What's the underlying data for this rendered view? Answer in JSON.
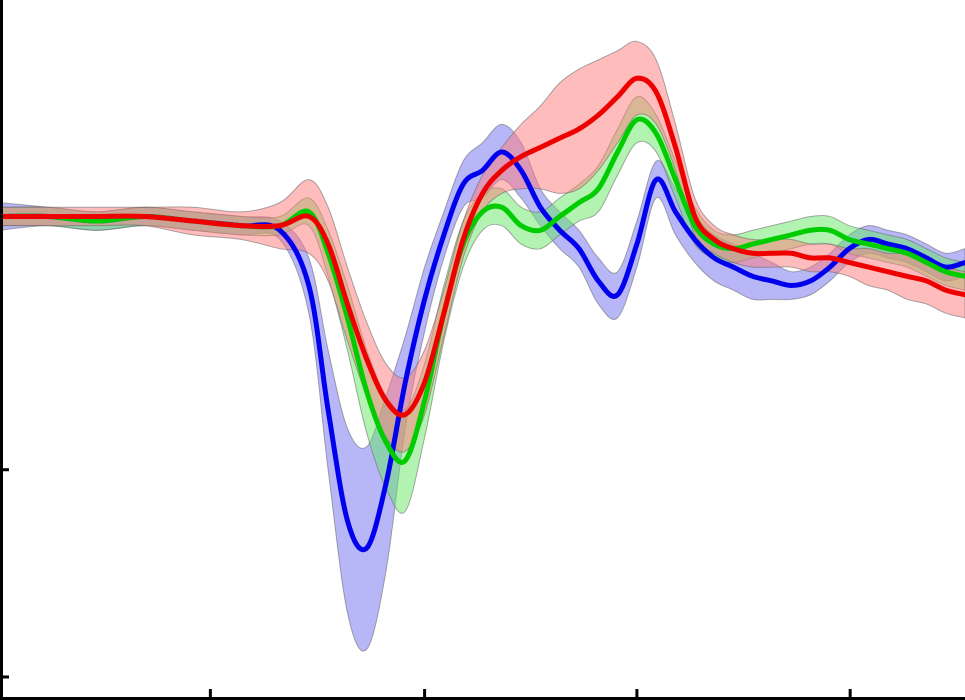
{
  "chart_data": {
    "type": "line",
    "title": "",
    "xlabel": "",
    "ylabel": "",
    "xlim": [
      0,
      100
    ],
    "ylim": [
      -1.05,
      0.47
    ],
    "x_ticks": [
      21.8,
      44.0,
      66.0,
      88.1
    ],
    "y_ticks": [
      -0.55,
      -1.0
    ],
    "grid": false,
    "legend": "none",
    "x": [
      0,
      5,
      10,
      15,
      20,
      25,
      29,
      32,
      34,
      36,
      38,
      40,
      42,
      44,
      46,
      48,
      50,
      52,
      54,
      56,
      58,
      60,
      62,
      64,
      66,
      68,
      70,
      72,
      74,
      76,
      78,
      80,
      82,
      84,
      86,
      88,
      90,
      92,
      94,
      96,
      98,
      100
    ],
    "series": [
      {
        "color": "#0000ee",
        "band_color": "#6f6ff2",
        "values": [
          0.0,
          0.0,
          -0.01,
          0.0,
          -0.01,
          -0.02,
          -0.03,
          -0.15,
          -0.42,
          -0.66,
          -0.72,
          -0.58,
          -0.36,
          -0.18,
          -0.04,
          0.07,
          0.1,
          0.14,
          0.1,
          0.02,
          -0.03,
          -0.07,
          -0.14,
          -0.17,
          -0.06,
          0.08,
          0.01,
          -0.05,
          -0.09,
          -0.11,
          -0.13,
          -0.14,
          -0.15,
          -0.14,
          -0.11,
          -0.07,
          -0.05,
          -0.06,
          -0.07,
          -0.09,
          -0.11,
          -0.1
        ],
        "band": [
          0.03,
          0.02,
          0.02,
          0.02,
          0.02,
          0.02,
          0.02,
          0.06,
          0.13,
          0.2,
          0.22,
          0.19,
          0.1,
          0.07,
          0.05,
          0.05,
          0.06,
          0.06,
          0.06,
          0.04,
          0.04,
          0.04,
          0.05,
          0.05,
          0.05,
          0.04,
          0.05,
          0.05,
          0.05,
          0.05,
          0.05,
          0.04,
          0.03,
          0.03,
          0.03,
          0.03,
          0.03,
          0.03,
          0.03,
          0.03,
          0.03,
          0.03
        ]
      },
      {
        "color": "#00cc00",
        "band_color": "#66e866",
        "values": [
          0.0,
          0.0,
          -0.01,
          0.0,
          -0.01,
          -0.02,
          -0.02,
          0.01,
          -0.08,
          -0.22,
          -0.38,
          -0.49,
          -0.53,
          -0.4,
          -0.21,
          -0.06,
          0.01,
          0.02,
          -0.02,
          -0.03,
          0.0,
          0.03,
          0.06,
          0.14,
          0.21,
          0.18,
          0.08,
          -0.02,
          -0.06,
          -0.07,
          -0.06,
          -0.05,
          -0.04,
          -0.03,
          -0.03,
          -0.05,
          -0.06,
          -0.07,
          -0.08,
          -0.1,
          -0.12,
          -0.13
        ],
        "band": [
          0.02,
          0.02,
          0.02,
          0.02,
          0.02,
          0.02,
          0.02,
          0.03,
          0.05,
          0.07,
          0.09,
          0.1,
          0.11,
          0.08,
          0.06,
          0.05,
          0.04,
          0.04,
          0.04,
          0.04,
          0.04,
          0.04,
          0.05,
          0.05,
          0.05,
          0.04,
          0.04,
          0.04,
          0.03,
          0.03,
          0.03,
          0.03,
          0.03,
          0.03,
          0.03,
          0.03,
          0.03,
          0.03,
          0.03,
          0.03,
          0.03,
          0.03
        ]
      },
      {
        "color": "#ee0000",
        "band_color": "#ff7a7a",
        "values": [
          0.0,
          0.0,
          0.0,
          0.0,
          -0.01,
          -0.02,
          -0.02,
          0.0,
          -0.06,
          -0.19,
          -0.31,
          -0.4,
          -0.43,
          -0.36,
          -0.21,
          -0.05,
          0.05,
          0.1,
          0.13,
          0.15,
          0.17,
          0.19,
          0.22,
          0.26,
          0.3,
          0.27,
          0.15,
          0.0,
          -0.05,
          -0.07,
          -0.08,
          -0.08,
          -0.08,
          -0.09,
          -0.09,
          -0.1,
          -0.11,
          -0.12,
          -0.13,
          -0.14,
          -0.16,
          -0.17
        ],
        "band": [
          0.02,
          0.02,
          0.02,
          0.02,
          0.03,
          0.03,
          0.05,
          0.08,
          0.08,
          0.08,
          0.08,
          0.08,
          0.08,
          0.07,
          0.05,
          0.04,
          0.04,
          0.05,
          0.07,
          0.09,
          0.12,
          0.13,
          0.12,
          0.1,
          0.08,
          0.07,
          0.05,
          0.04,
          0.03,
          0.03,
          0.03,
          0.03,
          0.03,
          0.03,
          0.03,
          0.03,
          0.04,
          0.04,
          0.05,
          0.05,
          0.05,
          0.05
        ]
      }
    ]
  }
}
